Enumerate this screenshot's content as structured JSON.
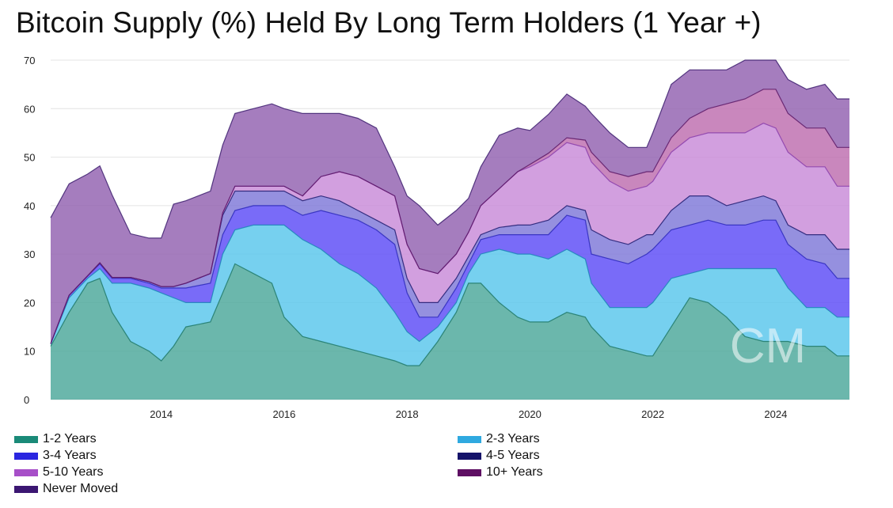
{
  "chart_data": {
    "type": "area",
    "title": "Bitcoin Supply (%) Held By Long Term Holders (1 Year +)",
    "xlabel": "",
    "ylabel": "",
    "xlim": [
      2012.2,
      2025.2
    ],
    "ylim": [
      0,
      70
    ],
    "y_ticks": [
      0,
      10,
      20,
      30,
      40,
      50,
      60,
      70
    ],
    "x_ticks": [
      2014,
      2016,
      2018,
      2020,
      2022,
      2024
    ],
    "grid": true,
    "stacked": true,
    "legend_position": "bottom",
    "watermark": "CM",
    "x": [
      2012.2,
      2012.5,
      2012.8,
      2013.0,
      2013.2,
      2013.5,
      2013.8,
      2014.0,
      2014.2,
      2014.4,
      2014.8,
      2015.0,
      2015.2,
      2015.5,
      2015.8,
      2016.0,
      2016.3,
      2016.6,
      2016.9,
      2017.2,
      2017.5,
      2017.8,
      2018.0,
      2018.2,
      2018.5,
      2018.8,
      2019.0,
      2019.2,
      2019.5,
      2019.8,
      2020.0,
      2020.3,
      2020.6,
      2020.9,
      2021.0,
      2021.3,
      2021.6,
      2021.9,
      2022.0,
      2022.3,
      2022.6,
      2022.9,
      2023.2,
      2023.5,
      2023.8,
      2024.0,
      2024.2,
      2024.5,
      2024.8,
      2025.0,
      2025.2
    ],
    "series": [
      {
        "name": "1-2 Years",
        "color": "#4aa79a",
        "values": [
          11,
          18,
          24,
          25,
          18,
          12,
          10,
          8,
          11,
          15,
          16,
          22,
          28,
          26,
          24,
          17,
          13,
          12,
          11,
          10,
          9,
          8,
          7,
          7,
          12,
          18,
          24,
          24,
          20,
          17,
          16,
          16,
          18,
          17,
          15,
          11,
          10,
          9,
          9,
          15,
          21,
          20,
          17,
          13,
          12,
          12,
          12,
          11,
          11,
          9,
          9
        ]
      },
      {
        "name": "2-3 Years",
        "color": "#58c6ec",
        "values": [
          0.5,
          3,
          1,
          2,
          6,
          12,
          13,
          14,
          10,
          5,
          4,
          8,
          7,
          10,
          12,
          19,
          20,
          19,
          17,
          16,
          14,
          10,
          7,
          5,
          3,
          2,
          2,
          6,
          11,
          13,
          14,
          13,
          13,
          12,
          9,
          8,
          9,
          10,
          11,
          10,
          5,
          7,
          10,
          14,
          15,
          15,
          11,
          8,
          8,
          8,
          8
        ]
      },
      {
        "name": "3-4 Years",
        "color": "#5b4af7",
        "values": [
          0,
          0.5,
          0.5,
          1,
          1,
          1,
          1,
          1,
          2,
          3,
          4,
          4,
          4,
          4,
          4,
          4,
          5,
          8,
          10,
          11,
          12,
          14,
          8,
          5,
          2,
          3,
          2,
          3,
          3,
          4,
          4,
          5,
          7,
          8,
          6,
          10,
          9,
          11,
          11,
          10,
          10,
          10,
          9,
          9,
          10,
          10,
          9,
          10,
          9,
          8,
          8
        ]
      },
      {
        "name": "4-5 Years",
        "color": "#7e78d8",
        "values": [
          0,
          0,
          0,
          0.2,
          0.2,
          0.2,
          0.3,
          0.3,
          0.3,
          1,
          2,
          4,
          4,
          3,
          3,
          3,
          3,
          3,
          3,
          2,
          2,
          3,
          3,
          3,
          3,
          2,
          1.5,
          1,
          1.5,
          2,
          2,
          3,
          2,
          2,
          5,
          4,
          4,
          4,
          3,
          4,
          6,
          5,
          4,
          5,
          5,
          4,
          4,
          5,
          6,
          6,
          6
        ]
      },
      {
        "name": "5-10 Years",
        "color": "#c88ad8",
        "values": [
          0,
          0,
          0,
          0,
          0,
          0,
          0,
          0,
          0,
          0,
          0,
          0.5,
          1,
          1,
          1,
          1,
          1,
          4,
          6,
          7,
          7,
          7,
          7,
          7,
          6,
          5,
          5,
          6,
          8,
          11,
          12,
          13,
          13,
          13,
          14,
          12,
          11,
          10,
          11,
          12,
          12,
          13,
          15,
          14,
          15,
          15,
          15,
          14,
          14,
          13,
          13
        ]
      },
      {
        "name": "10+ Years",
        "color": "#bd6dae",
        "values": [
          0,
          0,
          0,
          0,
          0,
          0,
          0,
          0,
          0,
          0,
          0,
          0,
          0,
          0,
          0,
          0,
          0,
          0,
          0,
          0,
          0,
          0,
          0,
          0,
          0,
          0,
          0,
          0,
          0,
          0,
          0.5,
          0.8,
          1,
          1.5,
          2,
          2,
          3,
          3,
          2,
          3,
          4,
          5,
          6,
          7,
          7,
          8,
          8,
          8,
          8,
          8,
          8
        ]
      },
      {
        "name": "Never Moved",
        "color": "#9160b0",
        "values": [
          26,
          23,
          21,
          20,
          17,
          9,
          9,
          10,
          17,
          17,
          17,
          14,
          15,
          16,
          17,
          16,
          17,
          13,
          12,
          12,
          12,
          6,
          10,
          13,
          10,
          9,
          7,
          8,
          11,
          9,
          7,
          8,
          9,
          7,
          8,
          8,
          6,
          5,
          8,
          11,
          10,
          8,
          7,
          8,
          8,
          7,
          7,
          8,
          9,
          10,
          10
        ]
      }
    ],
    "line_colors": [
      "#1d7867",
      "#1b84b8",
      "#2c28bb",
      "#1d1a6e",
      "#8a3dab",
      "#5c1866",
      "#3d1f6e"
    ]
  }
}
